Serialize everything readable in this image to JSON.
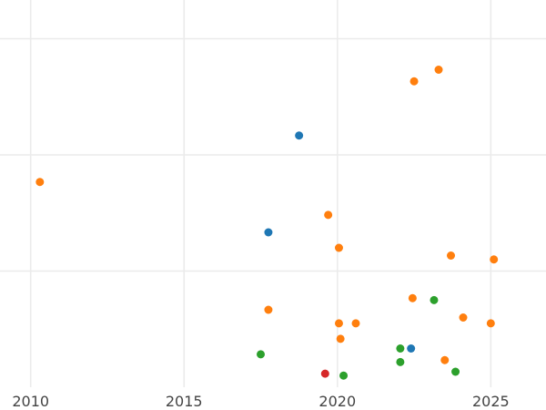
{
  "chart_data": {
    "type": "scatter",
    "title": "",
    "xlabel": "",
    "ylabel": "",
    "xlim": [
      2009.0,
      2026.8
    ],
    "ylim": [
      0.0,
      1.0
    ],
    "x_ticks": [
      2010,
      2015,
      2020,
      2025
    ],
    "x_tick_labels": [
      "2010",
      "2015",
      "2020",
      "2025"
    ],
    "y_grid_values": [
      0.3,
      0.6,
      0.9
    ],
    "grid": true,
    "legend": "none",
    "colors": {
      "blue": "#1f77b4",
      "orange": "#ff7f0e",
      "green": "#2ca02c",
      "red": "#d62728"
    },
    "series": [
      {
        "color": "blue",
        "points": [
          {
            "x": 2018.75,
            "y": 0.65
          },
          {
            "x": 2017.75,
            "y": 0.4
          },
          {
            "x": 2022.4,
            "y": 0.1
          }
        ]
      },
      {
        "color": "orange",
        "points": [
          {
            "x": 2010.3,
            "y": 0.53
          },
          {
            "x": 2022.5,
            "y": 0.79
          },
          {
            "x": 2023.3,
            "y": 0.82
          },
          {
            "x": 2019.7,
            "y": 0.445
          },
          {
            "x": 2020.05,
            "y": 0.36
          },
          {
            "x": 2023.7,
            "y": 0.34
          },
          {
            "x": 2025.1,
            "y": 0.33
          },
          {
            "x": 2022.45,
            "y": 0.23
          },
          {
            "x": 2017.75,
            "y": 0.2
          },
          {
            "x": 2020.05,
            "y": 0.165
          },
          {
            "x": 2020.6,
            "y": 0.165
          },
          {
            "x": 2024.1,
            "y": 0.18
          },
          {
            "x": 2025.0,
            "y": 0.165
          },
          {
            "x": 2020.1,
            "y": 0.125
          },
          {
            "x": 2023.5,
            "y": 0.07
          }
        ]
      },
      {
        "color": "green",
        "points": [
          {
            "x": 2023.15,
            "y": 0.225
          },
          {
            "x": 2017.5,
            "y": 0.085
          },
          {
            "x": 2022.05,
            "y": 0.1
          },
          {
            "x": 2022.05,
            "y": 0.065
          },
          {
            "x": 2020.2,
            "y": 0.03
          },
          {
            "x": 2023.85,
            "y": 0.04
          }
        ]
      },
      {
        "color": "red",
        "points": [
          {
            "x": 2019.6,
            "y": 0.035
          }
        ]
      }
    ]
  }
}
